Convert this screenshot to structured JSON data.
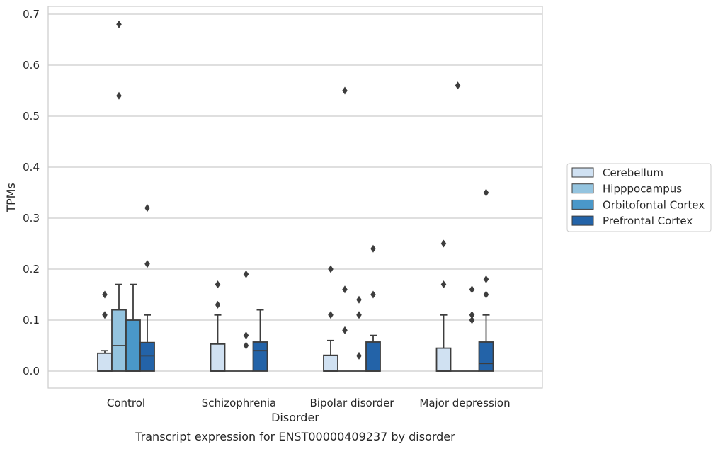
{
  "chart_data": {
    "type": "box",
    "xlabel": "Disorder",
    "ylabel": "TPMs",
    "caption": "Transcript expression for ENST00000409237 by disorder",
    "ylim": [
      -0.033,
      0.715
    ],
    "yticks": [
      0.0,
      0.1,
      0.2,
      0.3,
      0.4,
      0.5,
      0.6,
      0.7
    ],
    "ytick_labels": [
      "0.0",
      "0.1",
      "0.2",
      "0.3",
      "0.4",
      "0.5",
      "0.6",
      "0.7"
    ],
    "grid": "horizontal",
    "legend_position": "right",
    "categories": [
      "Control",
      "Schizophrenia",
      "Bipolar disorder",
      "Major depression"
    ],
    "series": [
      {
        "name": "Cerebellum",
        "color": "#d0e1f2",
        "boxes": [
          {
            "whislo": 0.0,
            "q1": 0.0,
            "med": 0.0,
            "q3": 0.035,
            "whishi": 0.04,
            "fliers": [
              0.11,
              0.15
            ]
          },
          {
            "whislo": 0.0,
            "q1": 0.0,
            "med": 0.0,
            "q3": 0.053,
            "whishi": 0.11,
            "fliers": [
              0.13,
              0.17
            ]
          },
          {
            "whislo": 0.0,
            "q1": 0.0,
            "med": 0.0,
            "q3": 0.031,
            "whishi": 0.06,
            "fliers": [
              0.11,
              0.2
            ]
          },
          {
            "whislo": 0.0,
            "q1": 0.0,
            "med": 0.0,
            "q3": 0.045,
            "whishi": 0.11,
            "fliers": [
              0.17,
              0.25
            ]
          }
        ]
      },
      {
        "name": "Hipppocampus",
        "color": "#94c4df",
        "boxes": [
          {
            "whislo": 0.0,
            "q1": 0.0,
            "med": 0.05,
            "q3": 0.12,
            "whishi": 0.17,
            "fliers": [
              0.54,
              0.68
            ]
          },
          {
            "whislo": 0.0,
            "q1": 0.0,
            "med": 0.0,
            "q3": 0.0,
            "whishi": 0.0,
            "fliers": []
          },
          {
            "whislo": 0.0,
            "q1": 0.0,
            "med": 0.0,
            "q3": 0.0,
            "whishi": 0.0,
            "fliers": []
          },
          {
            "whislo": 0.0,
            "q1": 0.0,
            "med": 0.0,
            "q3": 0.0,
            "whishi": 0.0,
            "fliers": []
          }
        ]
      },
      {
        "name": "Orbitofontal Cortex",
        "color": "#4a98c9",
        "boxes": [
          {
            "whislo": 0.0,
            "q1": 0.0,
            "med": 0.0,
            "q3": 0.1,
            "whishi": 0.17,
            "fliers": []
          },
          {
            "whislo": 0.0,
            "q1": 0.0,
            "med": 0.0,
            "q3": 0.0,
            "whishi": 0.0,
            "fliers": [
              0.05,
              0.07,
              0.19
            ]
          },
          {
            "whislo": 0.0,
            "q1": 0.0,
            "med": 0.0,
            "q3": 0.0,
            "whishi": 0.0,
            "fliers": [
              0.03,
              0.11,
              0.14
            ]
          },
          {
            "whislo": 0.0,
            "q1": 0.0,
            "med": 0.0,
            "q3": 0.0,
            "whishi": 0.0,
            "fliers": [
              0.1,
              0.11,
              0.16
            ]
          }
        ]
      },
      {
        "name": "Prefrontal Cortex",
        "color": "#2363a8",
        "boxes": [
          {
            "whislo": 0.0,
            "q1": 0.0,
            "med": 0.03,
            "q3": 0.056,
            "whishi": 0.11,
            "fliers": [
              0.21,
              0.32
            ]
          },
          {
            "whislo": 0.0,
            "q1": 0.0,
            "med": 0.04,
            "q3": 0.057,
            "whishi": 0.12,
            "fliers": []
          },
          {
            "whislo": 0.0,
            "q1": 0.0,
            "med": 0.0,
            "q3": 0.057,
            "whishi": 0.07,
            "fliers": [
              0.15,
              0.24
            ]
          },
          {
            "whislo": 0.0,
            "q1": 0.0,
            "med": 0.015,
            "q3": 0.057,
            "whishi": 0.11,
            "fliers": [
              0.15,
              0.18,
              0.35
            ]
          }
        ]
      }
    ],
    "extra_fliers": [
      {
        "category": "Bipolar disorder",
        "series": "Hipppocampus",
        "values": [
          0.08,
          0.16,
          0.55
        ]
      },
      {
        "category": "Major depression",
        "series": "Hipppocampus",
        "values": [
          0.56
        ]
      }
    ]
  }
}
